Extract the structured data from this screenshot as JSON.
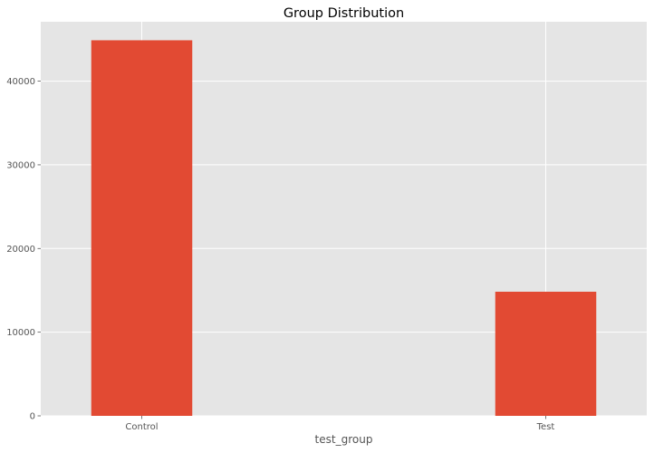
{
  "chart_data": {
    "type": "bar",
    "title": "Group Distribution",
    "xlabel": "test_group",
    "ylabel": "",
    "categories": [
      "Control",
      "Test"
    ],
    "values": [
      44886,
      14835
    ],
    "ylim": [
      0,
      47100
    ],
    "yticks": [
      0,
      10000,
      20000,
      30000,
      40000
    ],
    "grid": true,
    "legend": "none",
    "colors": {
      "bar": "#e24a33",
      "plot_background": "#e5e5e5",
      "grid": "#ffffff",
      "figure_background": "#ffffff"
    }
  }
}
